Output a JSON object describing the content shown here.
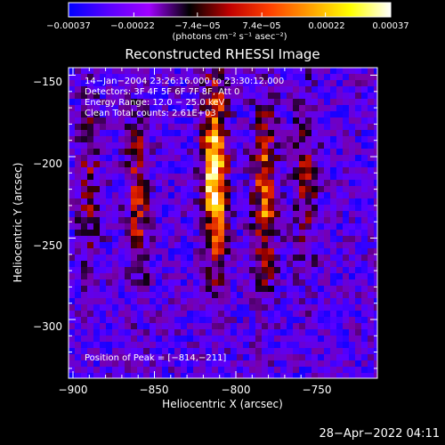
{
  "chart_data": {
    "type": "heatmap",
    "title": "Reconstructed RHESSI Image",
    "xlabel": "Heliocentric X (arcsec)",
    "ylabel": "Heliocentric Y (arcsec)",
    "xlim": [
      -903,
      -866
    ],
    "ylim": [
      -331,
      -148
    ],
    "x_ticks": [
      -900,
      -850,
      -800,
      -750
    ],
    "x_tick_labels": [
      "−900",
      "−850",
      "−800",
      "−750"
    ],
    "y_ticks": [
      -150,
      -200,
      -250,
      -300
    ],
    "y_tick_labels": [
      "−150",
      "−200",
      "−250",
      "−300"
    ],
    "colorbar": {
      "ticks": [
        -0.00037,
        -0.00022,
        -7.4e-05,
        7.4e-05,
        0.00022,
        0.00037
      ],
      "tick_labels": [
        "−0.00037",
        "−0.00022",
        "−7.4e−05",
        "7.4e−05",
        "0.00022",
        "0.00037"
      ],
      "unit": "(photons cm⁻² s⁻¹ asec⁻²)",
      "range": [
        -0.00037,
        0.00037
      ],
      "colors": [
        "#0000ff",
        "#5a00ff",
        "#a000ff",
        "#000000",
        "#c00000",
        "#ff4000",
        "#ffa000",
        "#ffff00",
        "#ffffff"
      ]
    },
    "annotations": [
      "14−Jan−2004 23:26:16.000 to 23:30:12.000",
      "Detectors: 3F 4F 5F 6F 7F 8F, Att 0",
      "Energy Range: 12.0 − 25.0 keV",
      "Clean     Total counts: 2.61E+03"
    ],
    "peak_label": "Position of Peak = [−814,−211]",
    "peak_position": [
      -814,
      -211
    ],
    "sources": [
      {
        "x": -813,
        "y": -210,
        "value": 0.00037
      },
      {
        "x": -782,
        "y": -225,
        "value": 0.00024
      },
      {
        "x": -860,
        "y": -225,
        "value": 0.00016
      },
      {
        "x": -890,
        "y": -215,
        "value": 0.00012
      },
      {
        "x": -757,
        "y": -215,
        "value": 0.00013
      }
    ],
    "timestamp": "28−Apr−2022 04:11"
  }
}
